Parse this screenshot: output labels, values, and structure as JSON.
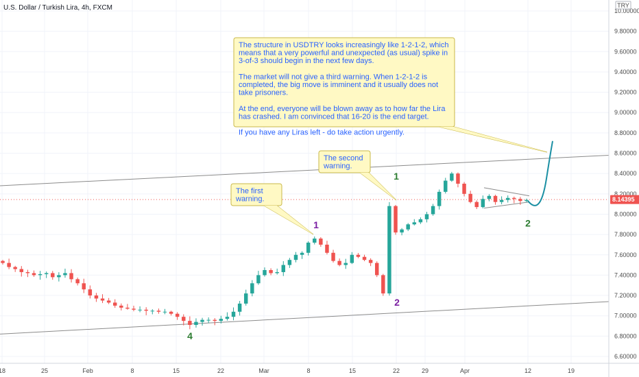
{
  "header": {
    "title": "U.S. Dollar / Turkish Lira, 4h, FXCM",
    "currency_badge": "TRY"
  },
  "colors": {
    "up": "#26a69a",
    "down": "#ef5350",
    "note_bg": "#fff9c4",
    "note_border": "#c9b84a",
    "note_text": "#2962ff",
    "projection": "#1a8fa3",
    "wave_purple": "#7b1fa2",
    "wave_green": "#2e7d32",
    "price_tag": "#ef5350",
    "trend_line": "#8a8a8a"
  },
  "chart_data": {
    "type": "candlestick",
    "symbol": "USDTRY",
    "timeframe": "4h",
    "y_axis": {
      "ticks": [
        "10.00000",
        "9.80000",
        "9.60000",
        "9.40000",
        "9.20000",
        "9.00000",
        "8.80000",
        "8.60000",
        "8.40000",
        "8.20000",
        "8.00000",
        "7.80000",
        "7.60000",
        "7.40000",
        "7.20000",
        "7.00000",
        "6.80000",
        "6.60000"
      ],
      "range": [
        6.5,
        10.05
      ]
    },
    "x_axis": {
      "ticks": [
        "18",
        "25",
        "Feb",
        "8",
        "15",
        "22",
        "Mar",
        "8",
        "15",
        "22",
        "29",
        "Apr",
        "12",
        "19"
      ]
    },
    "last_price": "8.14395",
    "series": [
      7.52,
      7.48,
      7.46,
      7.43,
      7.42,
      7.4,
      7.41,
      7.42,
      7.38,
      7.4,
      7.42,
      7.36,
      7.32,
      7.26,
      7.2,
      7.17,
      7.15,
      7.13,
      7.1,
      7.08,
      7.07,
      7.06,
      7.06,
      7.05,
      7.05,
      7.04,
      7.04,
      7.02,
      6.99,
      6.95,
      6.91,
      6.94,
      6.96,
      6.96,
      6.95,
      6.97,
      6.99,
      7.04,
      7.12,
      7.22,
      7.32,
      7.4,
      7.45,
      7.42,
      7.43,
      7.5,
      7.55,
      7.6,
      7.62,
      7.72,
      7.76,
      7.7,
      7.62,
      7.54,
      7.5,
      7.52,
      7.6,
      7.58,
      7.55,
      7.52,
      7.4,
      7.22,
      8.08,
      7.82,
      7.85,
      7.9,
      7.92,
      7.95,
      8.0,
      8.08,
      8.22,
      8.33,
      8.4,
      8.3,
      8.2,
      8.12,
      8.07,
      8.15,
      8.18,
      8.12,
      8.14,
      8.16,
      8.15,
      8.13,
      8.14
    ],
    "wave_labels": [
      {
        "label": "4",
        "color": "wave_green"
      },
      {
        "label": "1",
        "color": "wave_purple"
      },
      {
        "label": "2",
        "color": "wave_purple"
      },
      {
        "label": "1",
        "color": "wave_green"
      },
      {
        "label": "2",
        "color": "wave_green"
      }
    ]
  },
  "notes": {
    "first": [
      "The first",
      "warning."
    ],
    "second": [
      "The second",
      "warning."
    ],
    "main": [
      "The structure in USDTRY looks increasingly like 1-2-1-2, which",
      "means that a very powerful and unexpected (as usual) spike in",
      "3-of-3 should begin in the next few days.",
      "",
      "The market will not give a third warning. When 1-2-1-2 is",
      "completed, the big move is imminent and it usually does not",
      "take prisoners.",
      "",
      "At the end, everyone will be blown away as to how far the Lira",
      "has crashed. I am convinced that 16-20 is the end target.",
      "",
      "If you have any Liras left - do take action urgently."
    ]
  }
}
